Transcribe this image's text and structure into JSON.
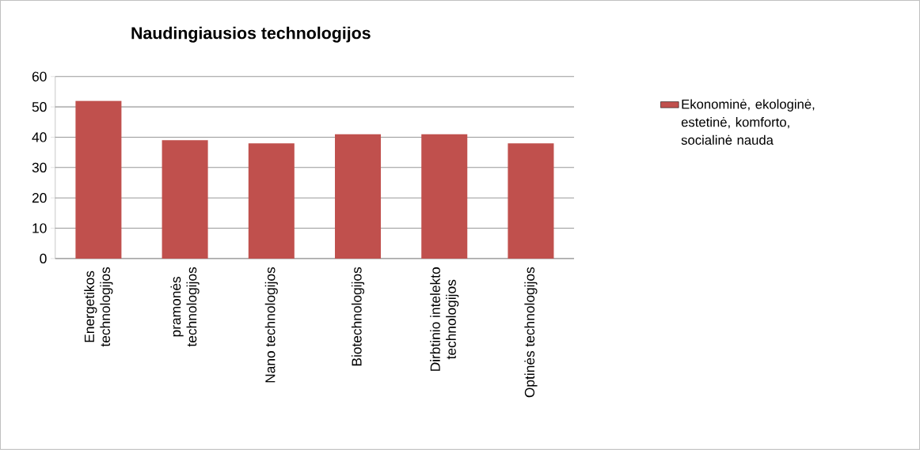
{
  "chart_data": {
    "type": "bar",
    "title": "Naudingiausios technologijos",
    "categories": [
      "Energetikos technologijos",
      "pramonės technologijos",
      "Nano technologijos",
      "Biotechnologijos",
      "Dirbtinio intelekto technologijos",
      "Optinės technologijos"
    ],
    "series": [
      {
        "name": "Ekonominė, ekologinė, estetinė, komforto, socialinė nauda",
        "color": "#c0504d",
        "values": [
          52,
          39,
          38,
          41,
          41,
          38
        ]
      }
    ],
    "ylim": [
      0,
      60
    ],
    "yticks": [
      0,
      10,
      20,
      30,
      40,
      50,
      60
    ],
    "grid": "y",
    "legend": "right"
  }
}
